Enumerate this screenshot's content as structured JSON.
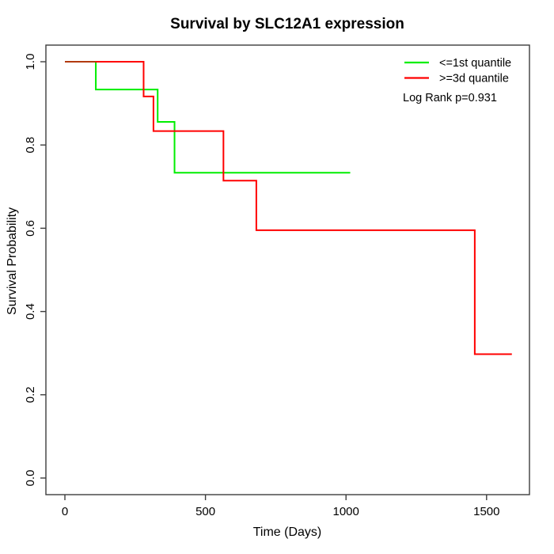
{
  "title": "Survival by SLC12A1 expression",
  "axes": {
    "x_label": "Time (Days)",
    "y_label": "Survival Probability"
  },
  "legend": {
    "entries": [
      {
        "label": "<=1st quantile",
        "color": "#00EE00"
      },
      {
        "label": ">=3d quantile",
        "color": "#FF0000"
      }
    ],
    "annotation": "Log Rank p=0.931"
  },
  "chart_data": {
    "type": "line",
    "subtype": "kaplan-meier-step-curves",
    "title": "Survival by SLC12A1 expression",
    "xlabel": "Time (Days)",
    "ylabel": "Survival Probability",
    "xlim": [
      -64,
      1654
    ],
    "ylim": [
      -0.04,
      1.04
    ],
    "grid": false,
    "legend_position": "top-right",
    "x_ticks": [
      {
        "v": 0,
        "label": "0"
      },
      {
        "v": 500,
        "label": "500"
      },
      {
        "v": 1000,
        "label": "1000"
      },
      {
        "v": 1500,
        "label": "1500"
      }
    ],
    "y_ticks": [
      {
        "v": 0.0,
        "label": "0.0"
      },
      {
        "v": 0.2,
        "label": "0.2"
      },
      {
        "v": 0.4,
        "label": "0.4"
      },
      {
        "v": 0.6,
        "label": "0.6"
      },
      {
        "v": 0.8,
        "label": "0.8"
      },
      {
        "v": 1.0,
        "label": "1.0"
      }
    ],
    "series": [
      {
        "name": "<=1st quantile",
        "color": "#00EE00",
        "steps_t": [
          0,
          110,
          330,
          390
        ],
        "steps_s": [
          1.0,
          0.9333,
          0.8556,
          0.7333
        ],
        "end_t": 1015
      },
      {
        "name": ">=3d quantile",
        "color": "#FF0000",
        "steps_t": [
          0,
          280,
          315,
          564,
          681,
          1458
        ],
        "steps_s": [
          1.0,
          0.9167,
          0.8333,
          0.7143,
          0.5952,
          0.2976
        ],
        "end_t": 1590
      }
    ],
    "overlap_color": "#B23A0F",
    "annotation": "Log Rank p=0.931"
  }
}
